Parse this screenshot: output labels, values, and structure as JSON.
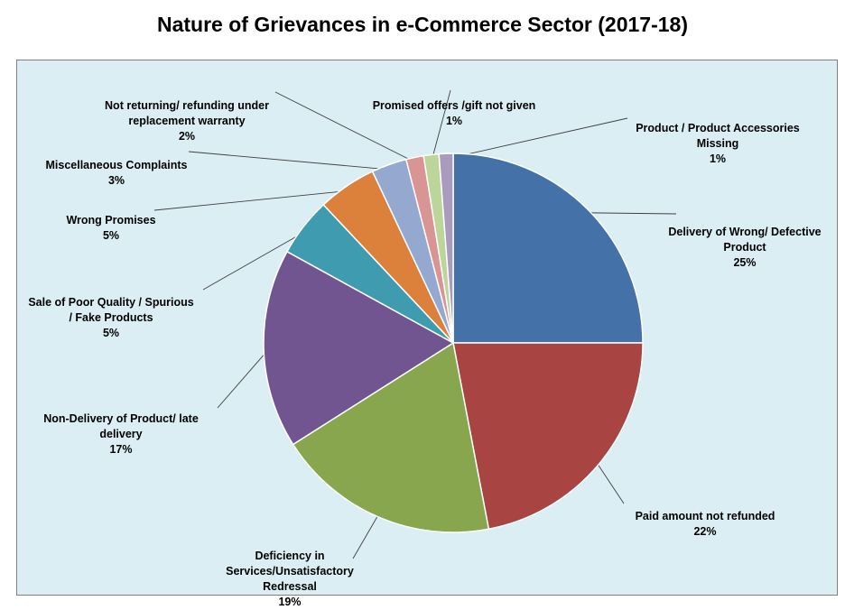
{
  "title": "Nature of Grievances in e-Commerce Sector (2017-18)",
  "chart_data": {
    "type": "pie",
    "title": "Nature of Grievances in e-Commerce Sector (2017-18)",
    "start_angle_deg": 0,
    "direction": "clockwise",
    "legend": "none",
    "slices": [
      {
        "label": "Delivery of Wrong/  Defective\nProduct",
        "value": 25,
        "value_label": "25%",
        "color": "#4472a8"
      },
      {
        "label": "Paid amount not refunded",
        "value": 22,
        "value_label": "22%",
        "color": "#a84442"
      },
      {
        "label": "Deficiency in\nServices/Unsatisfactory\nRedressal",
        "value": 19,
        "value_label": "19%",
        "color": "#88a64d"
      },
      {
        "label": "Non-Delivery of Product/  late\ndelivery",
        "value": 17,
        "value_label": "17%",
        "color": "#705590"
      },
      {
        "label": "Sale of  Poor Quality / Spurious\n/ Fake Products",
        "value": 5,
        "value_label": "5%",
        "color": "#3f9bb0"
      },
      {
        "label": "Wrong Promises",
        "value": 5,
        "value_label": "5%",
        "color": "#db813c"
      },
      {
        "label": "Miscellaneous Complaints",
        "value": 3,
        "value_label": "3%",
        "color": "#94a8d0"
      },
      {
        "label": "Not returning/  refunding under\nreplacement warranty",
        "value": 1.5,
        "value_label": "2%",
        "color": "#d99594"
      },
      {
        "label": "Promised offers /gift not given",
        "value": 1.3,
        "value_label": "1%",
        "color": "#bcd59a"
      },
      {
        "label": "Product / Product Accessories\nMissing",
        "value": 1.2,
        "value_label": "1%",
        "color": "#a99bbd"
      }
    ]
  }
}
